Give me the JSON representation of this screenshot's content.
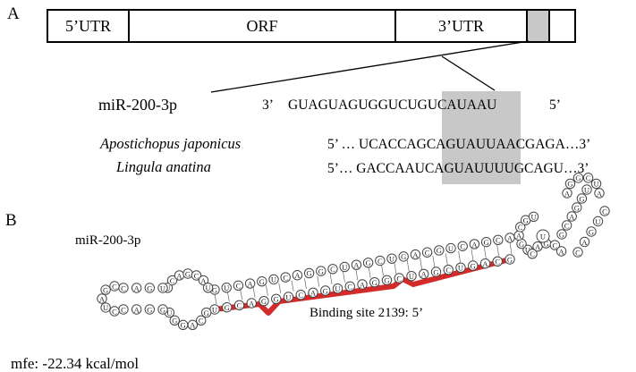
{
  "panel_a": {
    "label": "A",
    "transcript": {
      "segments": [
        {
          "label": "5’UTR"
        },
        {
          "label": "ORF"
        },
        {
          "label": "3’UTR"
        },
        {
          "label": ""
        },
        {
          "label": ""
        }
      ]
    },
    "mirna": {
      "name": "miR-200-3p",
      "prime_left": "3’",
      "sequence_plain": "GUAGUAGUGGUCU",
      "sequence_seed": "GUCAUAAU",
      "prime_right": "5’"
    },
    "targets": [
      {
        "species": "Apostichopus japonicus",
        "prefix": "5’ … UCACCAG",
        "seed": "CAGUAUU",
        "suffix": "AACGAGA…3’"
      },
      {
        "species": "Lingula anatina",
        "prefix": "5’… GACCAAU",
        "seed": "CAGUAUU",
        "suffix": "UUGCAGU…3’"
      }
    ],
    "colors": {
      "seed_highlight": "#c8c8c8",
      "outline": "#000000"
    }
  },
  "panel_b": {
    "label": "B",
    "mirna_name": "miR-200-3p",
    "binding_site": "Binding site 2139: 5’",
    "mfe": "mfe: -22.34 kcal/mol",
    "colors": {
      "binding_strand": "#d42a2a",
      "base_circle": "#444444"
    }
  }
}
